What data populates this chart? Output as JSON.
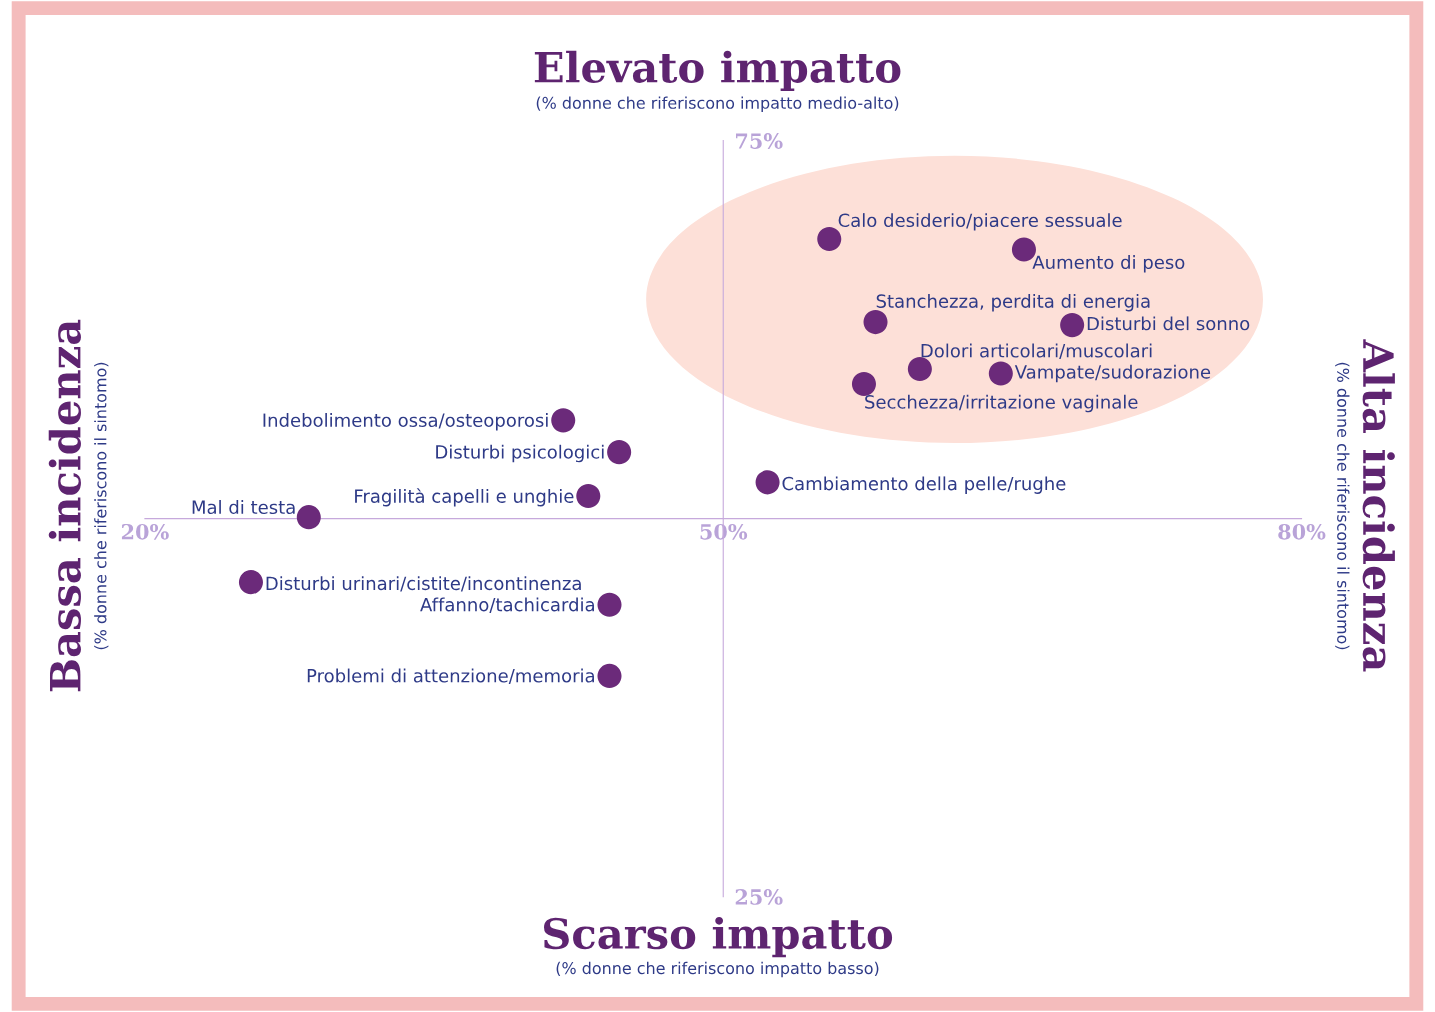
{
  "chart_data": {
    "type": "scatter",
    "color": "#6b2a7a",
    "marker": "circle",
    "grid": false,
    "legend": false,
    "x": [
      55.5,
      65.6,
      57.9,
      68.1,
      60.2,
      64.4,
      57.3,
      41.7,
      44.6,
      52.3,
      43.0,
      28.5,
      25.5,
      44.1,
      44.1
    ],
    "values": [
      68.5,
      67.8,
      63.0,
      62.8,
      59.9,
      59.6,
      58.9,
      56.5,
      54.4,
      52.4,
      51.5,
      50.1,
      45.8,
      44.3,
      39.6
    ],
    "xlim": [
      20,
      80
    ],
    "ylim": [
      25,
      75
    ],
    "xticks": [
      {
        "value": 20,
        "label": "20%"
      },
      {
        "value": 50,
        "label": "50%"
      },
      {
        "value": 80,
        "label": "80%"
      }
    ],
    "yticks": [
      {
        "value": 25,
        "label": "25%"
      },
      {
        "value": 75,
        "label": "75%"
      }
    ],
    "annotations": [
      "Elevato impatto",
      "(% donne che riferiscono impatto medio-alto)",
      "Scarso impatto",
      "(% donne che riferiscono impatto basso)",
      "Bassa incidenza",
      "(% donne che riferiscono il sintomo)",
      "Alta incidenza",
      "(% donne che riferiscono il sintomo)",
      {
        "text": "Calo desiderio/piacere sessuale",
        "x": 55.5,
        "y": 68.5
      },
      {
        "text": "Aumento di peso",
        "x": 65.6,
        "y": 67.8
      },
      {
        "text": "Stanchezza, perdita di energia",
        "x": 57.9,
        "y": 63.0
      },
      {
        "text": "Disturbi del sonno",
        "x": 68.1,
        "y": 62.8
      },
      {
        "text": "Dolori articolari/muscolari",
        "x": 60.2,
        "y": 59.9
      },
      {
        "text": "Vampate/sudorazione",
        "x": 64.4,
        "y": 59.6
      },
      {
        "text": "Secchezza/irritazione vaginale",
        "x": 57.3,
        "y": 58.9
      },
      {
        "text": "Indebolimento ossa/osteoporosi",
        "x": 41.7,
        "y": 56.5
      },
      {
        "text": "Disturbi psicologici",
        "x": 44.6,
        "y": 54.4
      },
      {
        "text": "Cambiamento della pelle/rughe",
        "x": 52.3,
        "y": 52.4
      },
      {
        "text": "Fragilità capelli e unghie",
        "x": 43.0,
        "y": 51.5
      },
      {
        "text": "Mal di testa",
        "x": 28.5,
        "y": 50.1
      },
      {
        "text": "Disturbi urinari/cistite/incontinenza",
        "x": 25.5,
        "y": 45.8
      },
      {
        "text": "Affanno/tachicardia",
        "x": 44.1,
        "y": 44.3
      },
      {
        "text": "Problemi di attenzione/memoria",
        "x": 44.1,
        "y": 39.6
      }
    ]
  }
}
